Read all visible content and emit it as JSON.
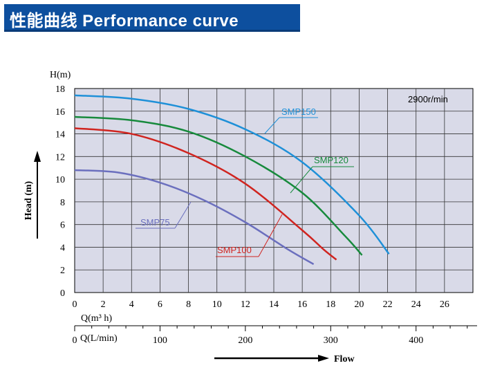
{
  "banner": {
    "title": "性能曲线  Performance curve"
  },
  "chart_data": {
    "type": "line",
    "speed_label": "2900r/min",
    "ylabel": "Head (m)",
    "yunit": "H(m)",
    "xunit_m3h": "Q(m³ h)",
    "xunit_lmin": "Q(L/min)",
    "flow_label": "Flow",
    "ylim": [
      0,
      18
    ],
    "xlim": [
      0,
      28
    ],
    "yticks": [
      0,
      2,
      4,
      6,
      8,
      10,
      12,
      14,
      16,
      18
    ],
    "xticks": [
      0,
      2,
      4,
      6,
      8,
      10,
      12,
      14,
      16,
      18,
      20,
      22,
      24,
      26
    ],
    "lmin_ticks": [
      0,
      100,
      200,
      300,
      400
    ],
    "grid": true,
    "series": [
      {
        "name": "SMP150",
        "color": "#1e90d8",
        "x": [
          0,
          4,
          8,
          12,
          16,
          20,
          22.1
        ],
        "y": [
          17.4,
          17.1,
          16.2,
          14.4,
          11.5,
          6.8,
          3.4
        ]
      },
      {
        "name": "SMP120",
        "color": "#178a3c",
        "x": [
          0,
          4,
          8,
          12,
          16,
          19,
          20.2
        ],
        "y": [
          15.5,
          15.2,
          14.2,
          12.0,
          8.8,
          5.0,
          3.3
        ]
      },
      {
        "name": "SMP100",
        "color": "#d0241f",
        "x": [
          0,
          4,
          8,
          12,
          16,
          17.5,
          18.4
        ],
        "y": [
          14.5,
          14.0,
          12.3,
          9.6,
          5.5,
          3.8,
          2.9
        ]
      },
      {
        "name": "SMP75",
        "color": "#6b6fbe",
        "x": [
          0,
          3,
          6,
          9,
          12,
          15,
          16.8
        ],
        "y": [
          10.8,
          10.6,
          9.7,
          8.2,
          6.2,
          3.8,
          2.5
        ]
      }
    ]
  }
}
